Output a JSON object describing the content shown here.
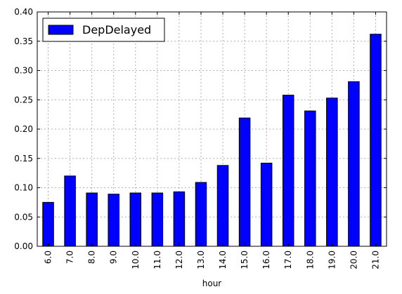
{
  "chart_data": {
    "type": "bar",
    "categories": [
      "6.0",
      "7.0",
      "8.0",
      "9.0",
      "10.0",
      "11.0",
      "12.0",
      "13.0",
      "14.0",
      "15.0",
      "16.0",
      "17.0",
      "18.0",
      "19.0",
      "20.0",
      "21.0"
    ],
    "series": [
      {
        "name": "DepDelayed",
        "values": [
          0.075,
          0.12,
          0.091,
          0.089,
          0.091,
          0.091,
          0.093,
          0.109,
          0.138,
          0.219,
          0.142,
          0.258,
          0.231,
          0.253,
          0.281,
          0.362
        ]
      }
    ],
    "xlabel": "hour",
    "ylabel": "",
    "ylim": [
      0,
      0.4
    ],
    "yticks": [
      "0.00",
      "0.05",
      "0.10",
      "0.15",
      "0.20",
      "0.25",
      "0.30",
      "0.35",
      "0.40"
    ],
    "grid": true,
    "legend_position": "top-left",
    "colors": {
      "bar_fill": "#0000ff",
      "bar_edge": "#000000",
      "grid": "#b0b0b0"
    }
  }
}
